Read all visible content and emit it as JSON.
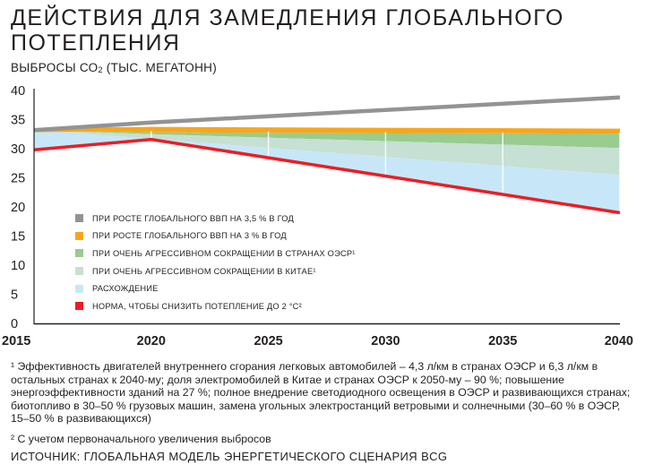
{
  "title": "ДЕЙСТВИЯ ДЛЯ ЗАМЕДЛЕНИЯ ГЛОБАЛЬНОГО ПОТЕПЛЕНИЯ",
  "ylabel_main": "ВЫБРОСЫ СО",
  "ylabel_sub": "2",
  "ylabel_rest": " (ТЫС. МЕГАТОНН)",
  "footnote1": "¹ Эффективность двигателей внутреннего сгорания легковых автомобилей – 4,3 л/км в странах ОЭСР и 6,3 л/км в остальных странах к 2040-му; доля электромобилей в Китае и странах ОЭСР к 2050-му – 90 %; повышение энергоэффективности зданий на 27 %; полное внедрение светодиодного освещения в ОЭСР и развивающихся странах; биотопливо в 30–50 % грузовых машин, замена угольных электростанций ветровыми и солнечными (30–60 % в ОЭСР, 15–50 % в развивающихся)",
  "footnote2": "² С учетом первоначального увеличения выбросов",
  "source": "ИСТОЧНИК: ГЛОБАЛЬНАЯ МОДЕЛЬ ЭНЕРГЕТИЧЕСКОГО СЦЕНАРИЯ BCG",
  "chart_data": {
    "type": "area",
    "x": [
      2015,
      2020,
      2040
    ],
    "xticks": [
      "2015",
      "2020",
      "2025",
      "2030",
      "2035",
      "2040"
    ],
    "yticks": [
      "0",
      "5",
      "10",
      "15",
      "20",
      "25",
      "30",
      "35",
      "40"
    ],
    "ylim": [
      0,
      40
    ],
    "xlim": [
      2015,
      2040
    ],
    "grid": "vertical",
    "legend_position": "center-left",
    "series": [
      {
        "name": "ПРИ РОСТЕ ГЛОБАЛЬНОГО ВВП НА 3,5 % В ГОД",
        "color": "#939393",
        "kind": "line",
        "values": [
          33.2,
          34.5,
          38.8
        ]
      },
      {
        "name": "ПРИ РОСТЕ ГЛОБАЛЬНОГО ВВП НА 3 % В ГОД",
        "color": "#f9a51a",
        "kind": "band",
        "values": [
          33.2,
          33.4,
          33.1
        ]
      },
      {
        "name": "ПРИ ОЧЕНЬ АГРЕССИВНОМ СОКРАЩЕНИИ В СТРАНАХ ОЭСР¹",
        "color": "#99cc8f",
        "kind": "band",
        "values": [
          33.2,
          32.8,
          32.6
        ]
      },
      {
        "name": "ПРИ ОЧЕНЬ АГРЕССИВНОМ СОКРАЩЕНИИ В КИТАЕ¹",
        "color": "#c6e0d4",
        "kind": "band",
        "values": [
          33.2,
          32.5,
          30.1
        ]
      },
      {
        "name": "РАСХОЖДЕНИЕ",
        "color": "#c7e7f8",
        "kind": "band",
        "values": [
          33.2,
          31.7,
          25.5
        ]
      },
      {
        "name": "НОРМА, ЧТОБЫ СНИЗИТЬ ПОТЕПЛЕНИЕ ДО 2 °С²",
        "color": "#ed1c24",
        "kind": "line",
        "values": [
          29.8,
          31.6,
          19.0
        ]
      }
    ]
  }
}
